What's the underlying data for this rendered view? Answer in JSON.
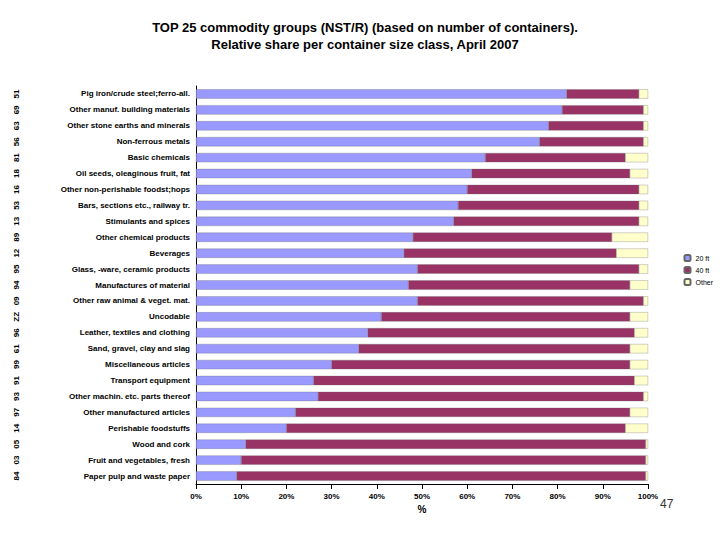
{
  "chart_data": {
    "type": "bar",
    "title": "TOP 25 commodity groups (NST/R) (based on number of containers).\nRelative share per container size class, April 2007",
    "orientation": "horizontal",
    "stacked": true,
    "grid": false,
    "legend": "right",
    "x_label": "%",
    "annotation": "47",
    "categories": [
      "Pig iron/crude steel;ferro-all.",
      "Other manuf. building materials",
      "Other stone earths and minerals",
      "Non-ferrous metals",
      "Basic chemicals",
      "Oil seeds, oleaginous fruit, fat",
      "Other non-perishable foodst;hops",
      "Bars, sections etc., railway tr.",
      "Stimulants and spices",
      "Other chemical products",
      "Beverages",
      "Glass, -ware, ceramic products",
      "Manufactures of material",
      "Other raw animal & veget. mat.",
      "Uncodable",
      "Leather, textiles and clothing",
      "Sand, gravel, clay and slag",
      "Miscellaneous articles",
      "Transport equipment",
      "Other machin. etc. parts thereof",
      "Other manufactured articles",
      "Perishable foodstuffs",
      "Wood and cork",
      "Fruit and vegetables, fresh",
      "Paper pulp and waste paper"
    ],
    "codes": [
      "51",
      "69",
      "63",
      "56",
      "81",
      "18",
      "16",
      "53",
      "13",
      "89",
      "12",
      "95",
      "94",
      "09",
      "ZZ",
      "96",
      "61",
      "99",
      "91",
      "93",
      "97",
      "14",
      "05",
      "03",
      "84"
    ],
    "series": [
      {
        "name": "20 ft",
        "color": "#9999ff",
        "values": [
          82,
          81,
          78,
          76,
          64,
          61,
          60,
          58,
          57,
          48,
          46,
          49,
          47,
          49,
          41,
          38,
          36,
          30,
          26,
          27,
          22,
          20,
          11,
          10,
          9
        ]
      },
      {
        "name": "40 ft",
        "color": "#993366",
        "values": [
          16,
          18,
          21,
          23,
          31,
          35,
          38,
          40,
          41,
          44,
          47,
          49,
          49,
          50,
          55,
          59,
          60,
          66,
          71,
          72,
          74,
          75,
          88.5,
          89.5,
          90.5
        ]
      },
      {
        "name": "Other",
        "color": "#ffffcc",
        "values": [
          2,
          1,
          1,
          1,
          5,
          4,
          2,
          2,
          2,
          8,
          7,
          2,
          4,
          1,
          4,
          3,
          4,
          4,
          3,
          1,
          4,
          5,
          0.5,
          0.5,
          0.5
        ]
      }
    ],
    "xlim": [
      0,
      100
    ],
    "xticks": [
      {
        "value": 0,
        "label": "0%"
      },
      {
        "value": 10,
        "label": "10%"
      },
      {
        "value": 20,
        "label": "20%"
      },
      {
        "value": 30,
        "label": "30%"
      },
      {
        "value": 40,
        "label": "40%"
      },
      {
        "value": 50,
        "label": "50%"
      },
      {
        "value": 60,
        "label": "60%"
      },
      {
        "value": 70,
        "label": "70%"
      },
      {
        "value": 80,
        "label": "80%"
      },
      {
        "value": 90,
        "label": "90%"
      },
      {
        "value": 100,
        "label": "100%"
      }
    ]
  }
}
